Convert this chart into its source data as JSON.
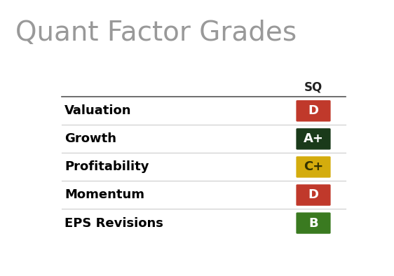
{
  "title": "Quant Factor Grades",
  "title_color": "#999999",
  "title_fontsize": 28,
  "column_header": "SQ",
  "background_color": "#ffffff",
  "rows": [
    {
      "label": "Valuation",
      "grade": "D",
      "box_color": "#c0392b",
      "text_color": "#ffffff"
    },
    {
      "label": "Growth",
      "grade": "A+",
      "box_color": "#1a3a1a",
      "text_color": "#ffffff"
    },
    {
      "label": "Profitability",
      "grade": "C+",
      "box_color": "#d4ac0d",
      "text_color": "#333300"
    },
    {
      "label": "Momentum",
      "grade": "D",
      "box_color": "#c0392b",
      "text_color": "#ffffff"
    },
    {
      "label": "EPS Revisions",
      "grade": "B",
      "box_color": "#3a7a20",
      "text_color": "#ffffff"
    }
  ],
  "header_line_color": "#555555",
  "row_line_color": "#cccccc",
  "label_fontsize": 13,
  "label_color": "#000000",
  "grade_fontsize": 13,
  "col_header_fontsize": 12,
  "col_header_color": "#222222"
}
